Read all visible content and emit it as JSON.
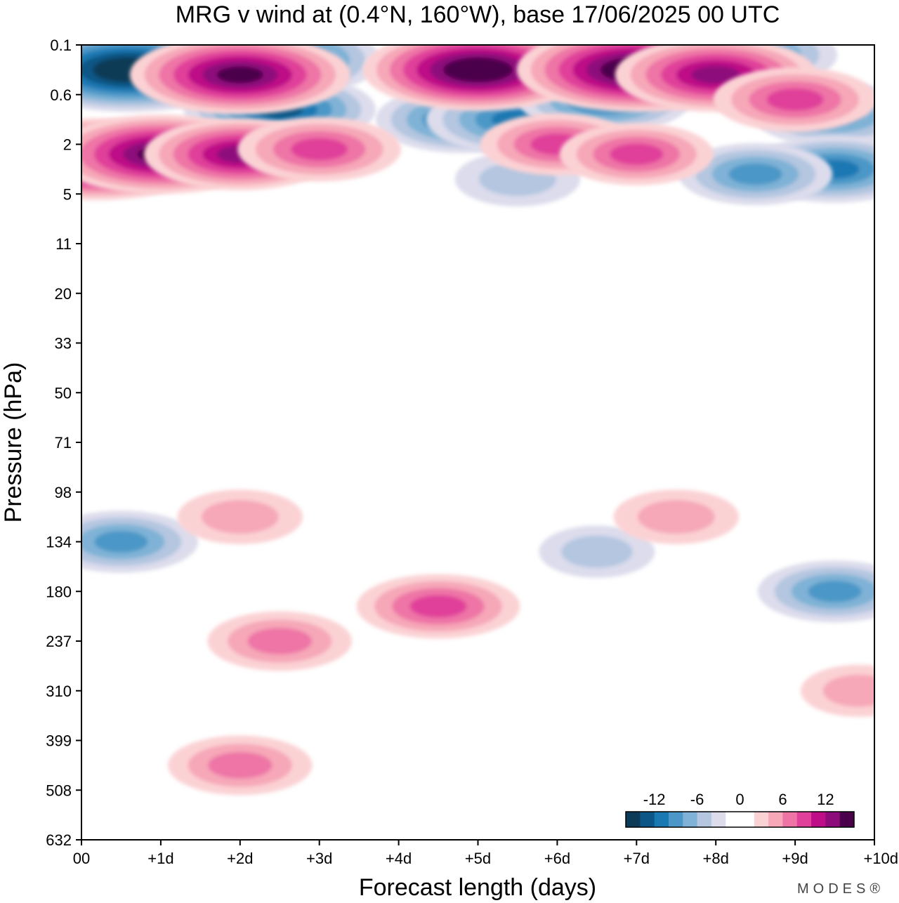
{
  "chart_data": {
    "type": "heatmap",
    "title": "MRG v wind at (0.4°N, 160°W),  base 17/06/2025  00 UTC",
    "xlabel": "Forecast length (days)",
    "ylabel": "Pressure (hPa)",
    "x_ticks": [
      "00",
      "+1d",
      "+2d",
      "+3d",
      "+4d",
      "+5d",
      "+6d",
      "+7d",
      "+8d",
      "+9d",
      "+10d"
    ],
    "y_ticks": [
      "0.1",
      "0.6",
      "2",
      "5",
      "11",
      "20",
      "33",
      "50",
      "71",
      "98",
      "134",
      "180",
      "237",
      "310",
      "399",
      "508",
      "632"
    ],
    "xlim": [
      0,
      10
    ],
    "colorbar": {
      "tick_labels": [
        "-12",
        "-6",
        "0",
        "6",
        "12"
      ],
      "colors": [
        "#0c3b57",
        "#0b5686",
        "#1a78b2",
        "#4b97c7",
        "#7fb2d6",
        "#b4c6e0",
        "#dcdcec",
        "#ffffff",
        "#ffffff",
        "#fbd2d4",
        "#f6a7b8",
        "#ee74a6",
        "#e0409a",
        "#be0d87",
        "#8e0b7c",
        "#4b004b"
      ]
    },
    "features": [
      {
        "sign": "neg",
        "x": 0.6,
        "level": 0.5,
        "intensity": 16
      },
      {
        "sign": "neg",
        "x": 2.5,
        "level": 0.3,
        "intensity": 12
      },
      {
        "sign": "neg",
        "x": 2.5,
        "level": 1.3,
        "intensity": 11
      },
      {
        "sign": "neg",
        "x": 4.8,
        "level": 1.5,
        "intensity": 9
      },
      {
        "sign": "neg",
        "x": 5.5,
        "level": 1.5,
        "intensity": 10
      },
      {
        "sign": "neg",
        "x": 6.6,
        "level": 1.1,
        "intensity": 9
      },
      {
        "sign": "neg",
        "x": 8.5,
        "level": 0.2,
        "intensity": 8
      },
      {
        "sign": "neg",
        "x": 9.5,
        "level": 1.4,
        "intensity": 8
      },
      {
        "sign": "neg",
        "x": 9.5,
        "level": 2.5,
        "intensity": 9
      },
      {
        "sign": "neg",
        "x": 8.5,
        "level": 2.6,
        "intensity": 7
      },
      {
        "sign": "neg",
        "x": 5.5,
        "level": 2.7,
        "intensity": 4
      },
      {
        "sign": "neg",
        "x": 0.5,
        "level": 10.0,
        "intensity": 7
      },
      {
        "sign": "neg",
        "x": 9.5,
        "level": 11.0,
        "intensity": 7
      },
      {
        "sign": "neg",
        "x": 6.5,
        "level": 10.2,
        "intensity": 3
      },
      {
        "sign": "pos",
        "x": 2.0,
        "level": 0.6,
        "intensity": 14
      },
      {
        "sign": "pos",
        "x": 5.0,
        "level": 0.5,
        "intensity": 15
      },
      {
        "sign": "pos",
        "x": 7.0,
        "level": 0.5,
        "intensity": 16
      },
      {
        "sign": "pos",
        "x": 8.0,
        "level": 0.6,
        "intensity": 12
      },
      {
        "sign": "pos",
        "x": 0.2,
        "level": 2.3,
        "intensity": 15
      },
      {
        "sign": "pos",
        "x": 1.0,
        "level": 2.2,
        "intensity": 14
      },
      {
        "sign": "pos",
        "x": 2.0,
        "level": 2.2,
        "intensity": 11
      },
      {
        "sign": "pos",
        "x": 3.0,
        "level": 2.1,
        "intensity": 8
      },
      {
        "sign": "pos",
        "x": 6.0,
        "level": 2.0,
        "intensity": 7
      },
      {
        "sign": "pos",
        "x": 7.0,
        "level": 2.2,
        "intensity": 7
      },
      {
        "sign": "pos",
        "x": 9.0,
        "level": 1.1,
        "intensity": 8
      },
      {
        "sign": "pos",
        "x": 4.5,
        "level": 11.3,
        "intensity": 8
      },
      {
        "sign": "pos",
        "x": 2.5,
        "level": 12.0,
        "intensity": 6
      },
      {
        "sign": "pos",
        "x": 2.0,
        "level": 14.5,
        "intensity": 6
      },
      {
        "sign": "pos",
        "x": 2.0,
        "level": 9.5,
        "intensity": 4
      },
      {
        "sign": "pos",
        "x": 7.5,
        "level": 9.5,
        "intensity": 4
      },
      {
        "sign": "pos",
        "x": 9.8,
        "level": 13.0,
        "intensity": 3
      }
    ]
  },
  "branding": {
    "watermark": "MODES®"
  }
}
